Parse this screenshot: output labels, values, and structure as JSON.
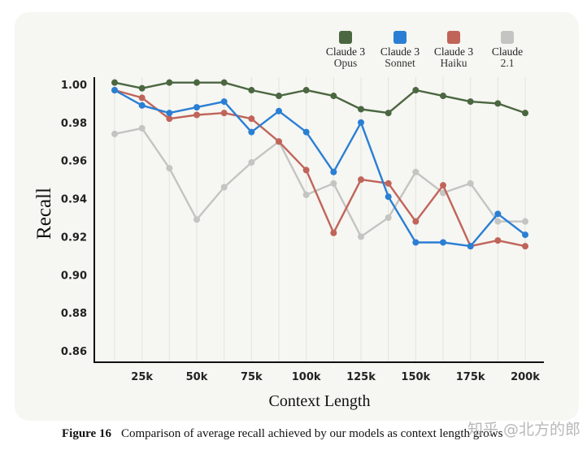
{
  "chart_data": {
    "type": "line",
    "title": "",
    "xlabel": "Context Length",
    "ylabel": "Recall",
    "x": [
      12500,
      25000,
      37500,
      50000,
      62500,
      75000,
      87500,
      100000,
      112500,
      125000,
      137500,
      150000,
      162500,
      175000,
      187500,
      200000
    ],
    "xticks": [
      {
        "value": 25000,
        "label": "25k"
      },
      {
        "value": 50000,
        "label": "50k"
      },
      {
        "value": 75000,
        "label": "75k"
      },
      {
        "value": 100000,
        "label": "100k"
      },
      {
        "value": 125000,
        "label": "125k"
      },
      {
        "value": 150000,
        "label": "150k"
      },
      {
        "value": 175000,
        "label": "175k"
      },
      {
        "value": 200000,
        "label": "200k"
      }
    ],
    "yticks": [
      {
        "value": 1.0,
        "label": "1.00"
      },
      {
        "value": 0.98,
        "label": "0.98"
      },
      {
        "value": 0.96,
        "label": "0.96"
      },
      {
        "value": 0.94,
        "label": "0.94"
      },
      {
        "value": 0.92,
        "label": "0.92"
      },
      {
        "value": 0.9,
        "label": "0.90"
      },
      {
        "value": 0.88,
        "label": "0.88"
      },
      {
        "value": 0.86,
        "label": "0.86"
      }
    ],
    "ylim": [
      0.854,
      1.005
    ],
    "xlim": [
      0,
      210000
    ],
    "grid": "vertical",
    "legend_position": "top-right",
    "series": [
      {
        "name": "Claude 3 Opus",
        "line1": "Claude 3",
        "line2": "Opus",
        "color": "#4b6741",
        "values": [
          1.001,
          0.998,
          1.001,
          1.001,
          1.001,
          0.997,
          0.994,
          0.997,
          0.994,
          0.987,
          0.985,
          0.997,
          0.994,
          0.991,
          0.99,
          0.985
        ]
      },
      {
        "name": "Claude 3 Sonnet",
        "line1": "Claude 3",
        "line2": "Sonnet",
        "color": "#2a7fd4",
        "values": [
          0.997,
          0.989,
          0.985,
          0.988,
          0.991,
          0.975,
          0.986,
          0.975,
          0.954,
          0.98,
          0.941,
          0.917,
          0.917,
          0.915,
          0.932,
          0.921
        ]
      },
      {
        "name": "Claude 3 Haiku",
        "line1": "Claude 3",
        "line2": "Haiku",
        "color": "#c0645a",
        "values": [
          0.997,
          0.993,
          0.982,
          0.984,
          0.985,
          0.982,
          0.97,
          0.955,
          0.922,
          0.95,
          0.948,
          0.928,
          0.947,
          0.915,
          0.918,
          0.915
        ]
      },
      {
        "name": "Claude 2.1",
        "line1": "Claude",
        "line2": "2.1",
        "color": "#c4c4c2",
        "values": [
          0.974,
          0.977,
          0.956,
          0.929,
          0.946,
          0.959,
          0.97,
          0.942,
          0.948,
          0.92,
          0.93,
          0.954,
          0.943,
          0.948,
          0.928,
          0.928
        ]
      }
    ]
  },
  "caption": {
    "label": "Figure 16",
    "text": "Comparison of average recall achieved by our models as context length grows"
  },
  "watermark": "知乎 @北方的郎"
}
